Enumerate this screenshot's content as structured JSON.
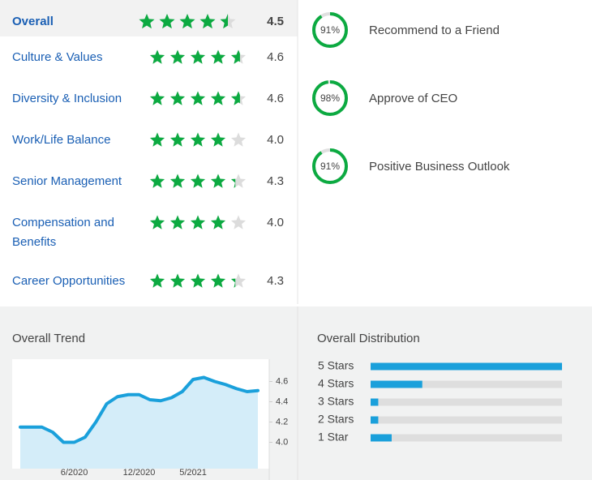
{
  "ratings": [
    {
      "label": "Overall",
      "score": 4.5
    },
    {
      "label": "Culture & Values",
      "score": 4.6
    },
    {
      "label": "Diversity & Inclusion",
      "score": 4.6
    },
    {
      "label": "Work/Life Balance",
      "score": {
        "value": 4,
        "label": "4.0"
      }
    },
    {
      "label": "Senior Management",
      "score": 4.3
    },
    {
      "label": "Compensation and Benefits",
      "score": {
        "value": 4,
        "label": "4.0"
      }
    },
    {
      "label": "Career Opportunities",
      "score": 4.3
    }
  ],
  "approvals": [
    {
      "percent": {
        "value": 91,
        "label": "91%"
      },
      "text": "Recommend to a Friend"
    },
    {
      "percent": {
        "value": 98,
        "label": "98%"
      },
      "text": "Approve of CEO"
    },
    {
      "percent": {
        "value": 91,
        "label": "91%"
      },
      "text": "Positive Business Outlook"
    }
  ],
  "trend": {
    "title": "Overall Trend",
    "x": [
      "1/2020",
      "2/2020",
      "3/2020",
      "4/2020",
      "5/2020",
      "6/2020",
      "7/2020",
      "8/2020",
      "9/2020",
      "10/2020",
      "11/2020",
      "12/2020",
      "1/2021",
      "2/2021",
      "3/2021",
      "4/2021",
      "5/2021",
      "6/2021",
      "7/2021",
      "8/2021",
      "9/2021",
      "10/2021",
      "11/2021"
    ],
    "values": [
      4.15,
      4.15,
      4.15,
      4.1,
      4.0,
      4.0,
      4.05,
      4.2,
      4.38,
      4.45,
      4.47,
      4.47,
      4.42,
      4.41,
      4.44,
      4.5,
      4.62,
      4.64,
      4.6,
      4.57,
      4.53,
      4.5,
      4.51
    ],
    "ylim": [
      3.74,
      4.82
    ],
    "yticks": [
      {
        "value": 4,
        "label": "4.0"
      },
      4.2,
      4.4,
      4.6
    ],
    "xticks": [
      "6/2020",
      "12/2020",
      "5/2021"
    ]
  },
  "distribution": {
    "title": "Overall Distribution",
    "categories": [
      "5 Stars",
      "4 Stars",
      "3 Stars",
      "2 Stars",
      "1 Star"
    ],
    "values": [
      100,
      27,
      4,
      4,
      11
    ],
    "xlim": [
      0,
      100
    ]
  }
}
